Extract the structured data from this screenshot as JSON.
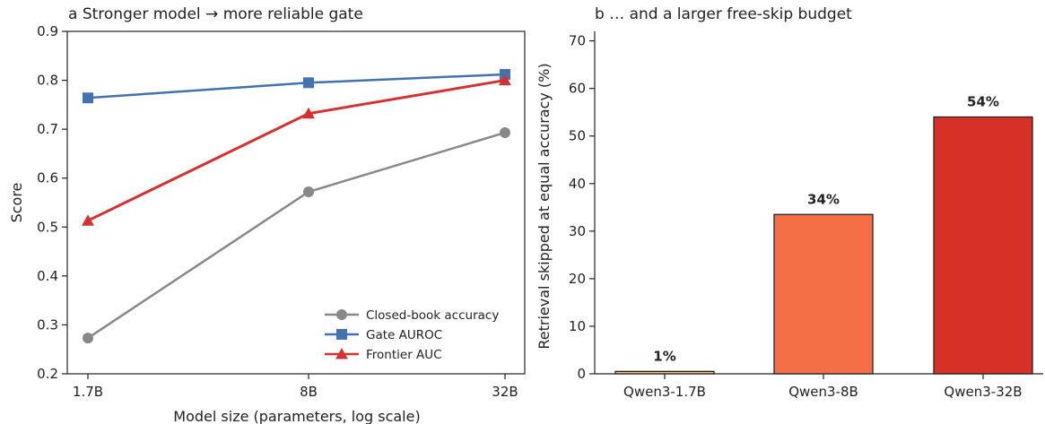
{
  "chart_data": [
    {
      "type": "line",
      "title": "a  Stronger model → more reliable gate",
      "xlabel": "Model size (parameters, log scale)",
      "ylabel": "Score",
      "x_scale": "log",
      "categories": [
        "1.7B",
        "8B",
        "32B"
      ],
      "x": [
        1.7,
        8,
        32
      ],
      "ylim": [
        0.2,
        0.9
      ],
      "yticks": [
        "0.2",
        "0.3",
        "0.4",
        "0.5",
        "0.6",
        "0.7",
        "0.8",
        "0.9"
      ],
      "legend_position": "lower-right",
      "grid": false,
      "series": [
        {
          "name": "Closed-book accuracy",
          "values": [
            0.273,
            0.572,
            0.693
          ],
          "color": "#888888",
          "marker": "circle"
        },
        {
          "name": "Gate AUROC",
          "values": [
            0.764,
            0.795,
            0.812
          ],
          "color": "#4472b0",
          "marker": "square"
        },
        {
          "name": "Frontier AUC",
          "values": [
            0.513,
            0.732,
            0.8
          ],
          "color": "#d43131",
          "marker": "triangle"
        }
      ]
    },
    {
      "type": "bar",
      "title": "b  … and a larger free-skip budget",
      "xlabel": "",
      "ylabel": "Retrieval skipped at equal accuracy (%)",
      "categories": [
        "Qwen3-1.7B",
        "Qwen3-8B",
        "Qwen3-32B"
      ],
      "values": [
        0.5,
        33.5,
        54
      ],
      "data_labels": [
        "1%",
        "34%",
        "54%"
      ],
      "colors": [
        "#fcbf7a",
        "#f46f45",
        "#d73027"
      ],
      "ylim": [
        0,
        72
      ],
      "yticks": [
        "0",
        "10",
        "20",
        "30",
        "40",
        "50",
        "60",
        "70"
      ],
      "grid": false
    }
  ]
}
